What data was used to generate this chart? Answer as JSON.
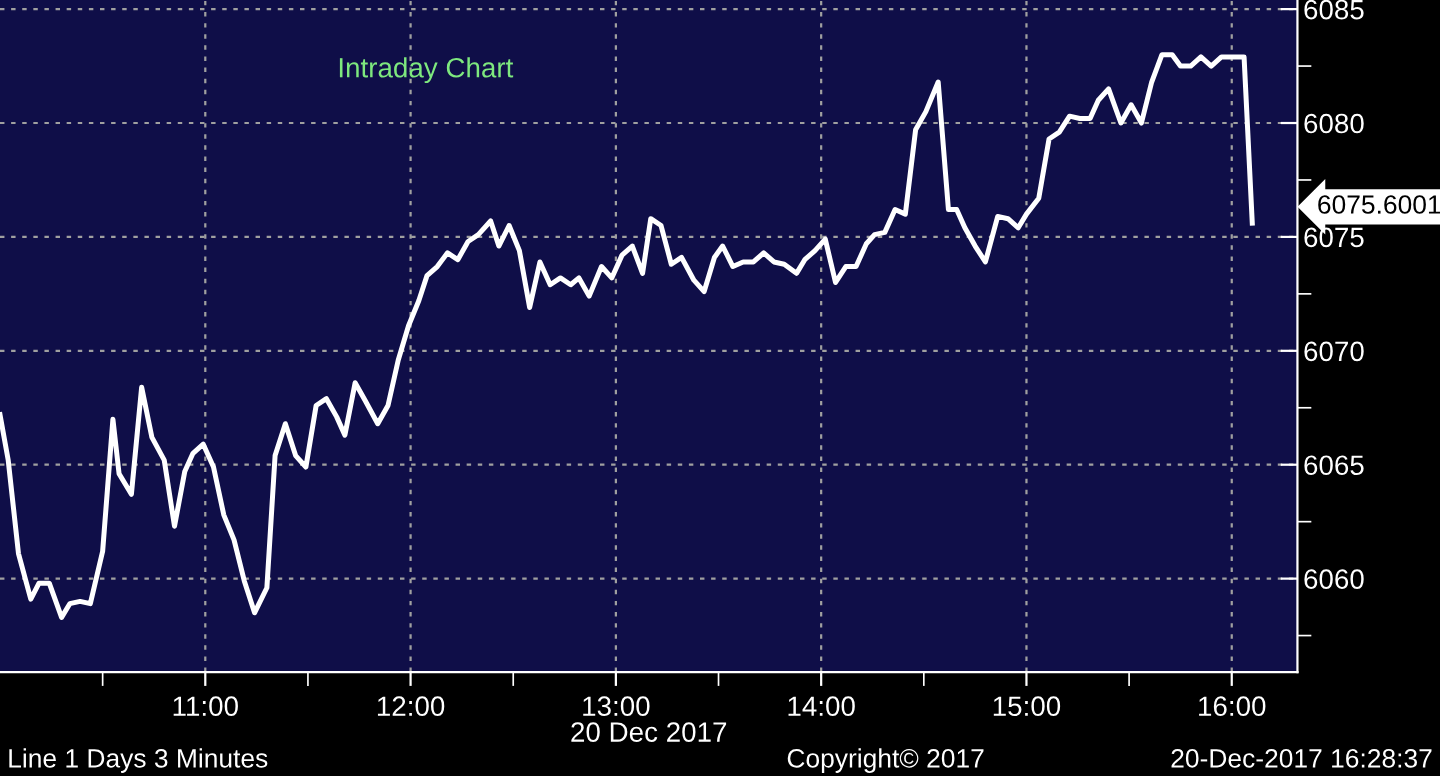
{
  "chart_data": {
    "type": "line",
    "title": "Intraday Chart",
    "xlabel": "20 Dec 2017",
    "annotations": [
      "6075.6001",
      "Line 1 Days 3 Minutes",
      "Copyright© 2017",
      "20-Dec-2017 16:28:37"
    ],
    "series": [
      {
        "color": "#ffffff",
        "x": [
          10.0,
          10.04,
          10.09,
          10.15,
          10.19,
          10.24,
          10.3,
          10.34,
          10.39,
          10.44,
          10.5,
          10.55,
          10.58,
          10.64,
          10.69,
          10.74,
          10.8,
          10.85,
          10.9,
          10.94,
          10.99,
          11.04,
          11.09,
          11.14,
          11.19,
          11.24,
          11.3,
          11.34,
          11.39,
          11.44,
          11.49,
          11.54,
          11.59,
          11.64,
          11.68,
          11.73,
          11.78,
          11.84,
          11.89,
          11.94,
          11.99,
          12.04,
          12.08,
          12.13,
          12.18,
          12.23,
          12.28,
          12.33,
          12.39,
          12.43,
          12.48,
          12.53,
          12.58,
          12.63,
          12.68,
          12.73,
          12.78,
          12.82,
          12.87,
          12.93,
          12.98,
          13.03,
          13.08,
          13.13,
          13.17,
          13.22,
          13.27,
          13.32,
          13.38,
          13.43,
          13.48,
          13.52,
          13.57,
          13.62,
          13.67,
          13.72,
          13.77,
          13.82,
          13.88,
          13.92,
          13.97,
          14.02,
          14.07,
          14.12,
          14.17,
          14.22,
          14.26,
          14.31,
          14.36,
          14.41,
          14.46,
          14.51,
          14.57,
          14.62,
          14.66,
          14.7,
          14.75,
          14.8,
          14.86,
          14.91,
          14.96,
          15.0,
          15.06,
          15.11,
          15.16,
          15.21,
          15.26,
          15.31,
          15.35,
          15.4,
          15.46,
          15.51,
          15.56,
          15.61,
          15.66,
          15.71,
          15.75,
          15.8,
          15.85,
          15.9,
          15.95,
          16.01,
          16.06,
          16.1
        ],
        "values": [
          6067.2,
          6065.2,
          6061.1,
          6059.1,
          6059.8,
          6059.8,
          6058.3,
          6058.9,
          6059.0,
          6058.9,
          6061.2,
          6067.0,
          6064.6,
          6063.7,
          6068.4,
          6066.2,
          6065.2,
          6062.3,
          6064.7,
          6065.5,
          6065.9,
          6064.9,
          6062.8,
          6061.7,
          6059.9,
          6058.5,
          6059.6,
          6065.4,
          6066.8,
          6065.4,
          6064.9,
          6067.6,
          6067.9,
          6067.1,
          6066.3,
          6068.6,
          6067.8,
          6066.8,
          6067.6,
          6069.6,
          6071.1,
          6072.2,
          6073.3,
          6073.7,
          6074.3,
          6074.0,
          6074.8,
          6075.1,
          6075.7,
          6074.6,
          6075.5,
          6074.4,
          6071.9,
          6073.9,
          6072.9,
          6073.2,
          6072.9,
          6073.2,
          6072.4,
          6073.7,
          6073.2,
          6074.2,
          6074.6,
          6073.4,
          6075.8,
          6075.5,
          6073.8,
          6074.1,
          6073.1,
          6072.6,
          6074.1,
          6074.6,
          6073.7,
          6073.9,
          6073.9,
          6074.3,
          6073.9,
          6073.8,
          6073.4,
          6074.0,
          6074.4,
          6074.9,
          6073.0,
          6073.7,
          6073.7,
          6074.7,
          6075.1,
          6075.2,
          6076.2,
          6076.0,
          6079.7,
          6080.5,
          6081.8,
          6076.2,
          6076.2,
          6075.4,
          6074.6,
          6073.9,
          6075.9,
          6075.8,
          6075.4,
          6076.0,
          6076.7,
          6079.3,
          6079.6,
          6080.3,
          6080.2,
          6080.2,
          6081.0,
          6081.5,
          6080.0,
          6080.8,
          6080.0,
          6081.8,
          6083.0,
          6083.0,
          6082.5,
          6082.5,
          6082.9,
          6082.5,
          6082.9,
          6082.9,
          6082.9,
          6075.6
        ]
      }
    ],
    "xlim": [
      10.0,
      16.32
    ],
    "xticks": [
      {
        "value": 10.5,
        "label": null
      },
      {
        "value": 11,
        "label": "11:00"
      },
      {
        "value": 11.5,
        "label": null
      },
      {
        "value": 12,
        "label": "12:00"
      },
      {
        "value": 12.5,
        "label": null
      },
      {
        "value": 13,
        "label": "13:00"
      },
      {
        "value": 13.5,
        "label": null
      },
      {
        "value": 14,
        "label": "14:00"
      },
      {
        "value": 14.5,
        "label": null
      },
      {
        "value": 15,
        "label": "15:00"
      },
      {
        "value": 15.5,
        "label": null
      },
      {
        "value": 16,
        "label": "16:00"
      }
    ],
    "ylim": [
      6055.9,
      6085.4
    ],
    "yticks": [
      {
        "value": 6057.5,
        "label": null
      },
      6060,
      {
        "value": 6062.5,
        "label": null
      },
      6065,
      {
        "value": 6067.5,
        "label": null
      },
      6070,
      {
        "value": 6072.5,
        "label": null
      },
      6075,
      {
        "value": 6077.5,
        "label": null
      },
      6080,
      {
        "value": 6082.5,
        "label": null
      },
      6085
    ],
    "grid": true,
    "legend": false,
    "marker": "none",
    "line_style": "solid"
  }
}
